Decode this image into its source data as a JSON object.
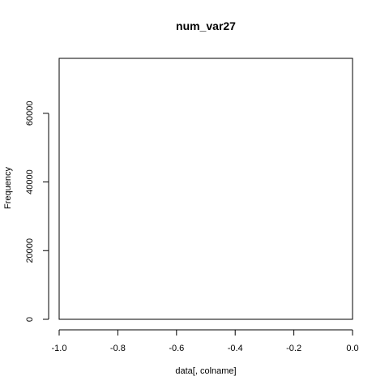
{
  "chart_data": {
    "type": "bar",
    "title": "num_var27",
    "xlabel": "data[, colname]",
    "ylabel": "Frequency",
    "xlim": [
      -1.0,
      0.0
    ],
    "ylim": [
      0,
      76000
    ],
    "x_ticks": [
      -1.0,
      -0.8,
      -0.6,
      -0.4,
      -0.2,
      0.0
    ],
    "x_tick_labels": [
      "-1.0",
      "-0.8",
      "-0.6",
      "-0.4",
      "-0.2",
      "0.0"
    ],
    "y_ticks": [
      0,
      20000,
      40000,
      60000
    ],
    "y_tick_labels": [
      "0",
      "20000",
      "40000",
      "60000"
    ],
    "bins": [],
    "grid": false,
    "legend": "none"
  }
}
